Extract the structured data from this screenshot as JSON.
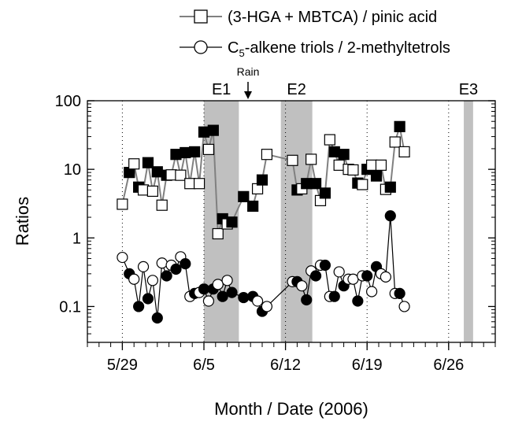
{
  "chart_data": {
    "type": "scatter",
    "xlabel": "Month / Date (2006)",
    "ylabel": "Ratios",
    "y_scale": "log",
    "ylim": [
      0.03,
      100
    ],
    "xlim": [
      "2006-05-26",
      "2006-06-30"
    ],
    "x_tick_labels": [
      "5/29",
      "6/5",
      "6/12",
      "6/19",
      "6/26"
    ],
    "x_tick_dates": [
      "2006-05-29",
      "2006-06-05",
      "2006-06-12",
      "2006-06-19",
      "2006-06-26"
    ],
    "y_tick_labels": [
      "0.1",
      "1",
      "10",
      "100"
    ],
    "y_tick_values": [
      0.1,
      1,
      10,
      100
    ],
    "legend": {
      "position": "top-left",
      "entries": [
        {
          "series": 0,
          "text": "(3-HGA + MBTCA) / pinic acid"
        },
        {
          "series": 1,
          "text_main": "C",
          "text_sub": "5",
          "text_rest": "-alkene triols / 2-methyltetrols"
        }
      ]
    },
    "events": [
      {
        "label": "E1",
        "start": "2006-06-05",
        "end": "2006-06-08"
      },
      {
        "label": "E2",
        "start": "2006-06-11.6",
        "end": "2006-06-14.3"
      },
      {
        "label": "E3",
        "start": "2006-06-27.3",
        "end": "2006-06-28.1"
      }
    ],
    "annotation": {
      "text": "Rain",
      "date": "2006-06-09"
    },
    "series": [
      {
        "name": "(3-HGA + MBTCA) / pinic acid",
        "marker": "square",
        "color": "#808080",
        "points": [
          [
            "2006-05-29.0",
            3.1,
            "open"
          ],
          [
            "2006-05-29.6",
            9.0,
            "filled"
          ],
          [
            "2006-05-30.0",
            12,
            "open"
          ],
          [
            "2006-05-30.4",
            5.5,
            "filled"
          ],
          [
            "2006-05-30.8",
            5.0,
            "open"
          ],
          [
            "2006-05-31.2",
            12.5,
            "filled"
          ],
          [
            "2006-05-31.6",
            4.8,
            "open"
          ],
          [
            "2006-06-01.0",
            9.2,
            "filled"
          ],
          [
            "2006-06-01.4",
            3.0,
            "open"
          ],
          [
            "2006-06-01.8",
            8.2,
            "filled"
          ],
          [
            "2006-06-02.2",
            8.3,
            "open"
          ],
          [
            "2006-06-02.6",
            16.5,
            "filled"
          ],
          [
            "2006-06-03.0",
            8.2,
            "open"
          ],
          [
            "2006-06-03.4",
            17.5,
            "filled"
          ],
          [
            "2006-06-03.8",
            6.2,
            "open"
          ],
          [
            "2006-06-04.2",
            18.0,
            "filled"
          ],
          [
            "2006-06-04.6",
            6.2,
            "open"
          ],
          [
            "2006-06-05.0",
            35,
            "filled"
          ],
          [
            "2006-06-05.4",
            19.5,
            "open"
          ],
          [
            "2006-06-05.8",
            37,
            "filled"
          ],
          [
            "2006-06-06.2",
            1.15,
            "open"
          ],
          [
            "2006-06-06.6",
            1.9,
            "filled"
          ],
          [
            "2006-06-07.0",
            1.6,
            "open"
          ],
          [
            "2006-06-07.4",
            1.7,
            "filled"
          ],
          [
            "2006-06-08.4",
            4.0,
            "filled"
          ],
          [
            "2006-06-09.2",
            2.9,
            "filled"
          ],
          [
            "2006-06-09.6",
            5.2,
            "open"
          ],
          [
            "2006-06-10.0",
            7.0,
            "filled"
          ],
          [
            "2006-06-10.4",
            16.5,
            "open"
          ],
          [
            "2006-06-12.6",
            13.5,
            "open"
          ],
          [
            "2006-06-13.0",
            5.0,
            "filled"
          ],
          [
            "2006-06-13.4",
            5.2,
            "open"
          ],
          [
            "2006-06-13.8",
            6.2,
            "filled"
          ],
          [
            "2006-06-14.2",
            14.0,
            "open"
          ],
          [
            "2006-06-14.6",
            6.2,
            "filled"
          ],
          [
            "2006-06-15.0",
            3.5,
            "open"
          ],
          [
            "2006-06-15.4",
            4.5,
            "filled"
          ],
          [
            "2006-06-15.8",
            27,
            "open"
          ],
          [
            "2006-06-16.2",
            18.0,
            "filled"
          ],
          [
            "2006-06-16.6",
            11.5,
            "open"
          ],
          [
            "2006-06-17.0",
            16.5,
            "filled"
          ],
          [
            "2006-06-17.4",
            10.0,
            "open"
          ],
          [
            "2006-06-17.8",
            9.8,
            "open"
          ],
          [
            "2006-06-18.2",
            6.3,
            "filled"
          ],
          [
            "2006-06-18.6",
            6.0,
            "open"
          ],
          [
            "2006-06-19.0",
            10.0,
            "filled"
          ],
          [
            "2006-06-19.4",
            11.5,
            "open"
          ],
          [
            "2006-06-19.8",
            8.0,
            "filled"
          ],
          [
            "2006-06-20.2",
            11.5,
            "open"
          ],
          [
            "2006-06-20.6",
            5.1,
            "open"
          ],
          [
            "2006-06-21.0",
            5.5,
            "filled"
          ],
          [
            "2006-06-21.4",
            25,
            "open"
          ],
          [
            "2006-06-21.8",
            42,
            "filled"
          ],
          [
            "2006-06-22.2",
            18.0,
            "open"
          ]
        ]
      },
      {
        "name": "C5-alkene triols / 2-methyltetrols",
        "marker": "circle",
        "color": "#000000",
        "points": [
          [
            "2006-05-29.0",
            0.52,
            "open"
          ],
          [
            "2006-05-29.6",
            0.3,
            "filled"
          ],
          [
            "2006-05-30.0",
            0.25,
            "open"
          ],
          [
            "2006-05-30.4",
            0.1,
            "filled"
          ],
          [
            "2006-05-30.8",
            0.38,
            "open"
          ],
          [
            "2006-05-31.2",
            0.13,
            "filled"
          ],
          [
            "2006-05-31.6",
            0.24,
            "open"
          ],
          [
            "2006-06-01.0",
            0.068,
            "filled"
          ],
          [
            "2006-06-01.4",
            0.43,
            "open"
          ],
          [
            "2006-06-01.8",
            0.28,
            "filled"
          ],
          [
            "2006-06-02.2",
            0.4,
            "open"
          ],
          [
            "2006-06-02.6",
            0.35,
            "filled"
          ],
          [
            "2006-06-03.0",
            0.53,
            "open"
          ],
          [
            "2006-06-03.4",
            0.42,
            "filled"
          ],
          [
            "2006-06-03.8",
            0.14,
            "open"
          ],
          [
            "2006-06-04.2",
            0.155,
            "filled"
          ],
          [
            "2006-06-04.6",
            0.16,
            "open"
          ],
          [
            "2006-06-05.0",
            0.18,
            "filled"
          ],
          [
            "2006-06-05.4",
            0.12,
            "open"
          ],
          [
            "2006-06-05.8",
            0.18,
            "filled"
          ],
          [
            "2006-06-06.2",
            0.21,
            "open"
          ],
          [
            "2006-06-06.6",
            0.14,
            "filled"
          ],
          [
            "2006-06-07.0",
            0.24,
            "open"
          ],
          [
            "2006-06-07.4",
            0.16,
            "filled"
          ],
          [
            "2006-06-08.4",
            0.135,
            "filled"
          ],
          [
            "2006-06-09.2",
            0.14,
            "filled"
          ],
          [
            "2006-06-09.6",
            0.12,
            "open"
          ],
          [
            "2006-06-10.0",
            0.085,
            "filled"
          ],
          [
            "2006-06-10.4",
            0.1,
            "open"
          ],
          [
            "2006-06-12.6",
            0.23,
            "open"
          ],
          [
            "2006-06-13.0",
            0.23,
            "filled"
          ],
          [
            "2006-06-13.4",
            0.2,
            "open"
          ],
          [
            "2006-06-13.8",
            0.125,
            "filled"
          ],
          [
            "2006-06-14.2",
            0.33,
            "open"
          ],
          [
            "2006-06-14.6",
            0.28,
            "filled"
          ],
          [
            "2006-06-15.0",
            0.4,
            "open"
          ],
          [
            "2006-06-15.4",
            0.4,
            "filled"
          ],
          [
            "2006-06-15.8",
            0.14,
            "open"
          ],
          [
            "2006-06-16.2",
            0.14,
            "filled"
          ],
          [
            "2006-06-16.6",
            0.32,
            "open"
          ],
          [
            "2006-06-17.0",
            0.2,
            "filled"
          ],
          [
            "2006-06-17.4",
            0.25,
            "open"
          ],
          [
            "2006-06-17.8",
            0.25,
            "open"
          ],
          [
            "2006-06-18.2",
            0.12,
            "filled"
          ],
          [
            "2006-06-18.6",
            0.28,
            "open"
          ],
          [
            "2006-06-19.0",
            0.28,
            "filled"
          ],
          [
            "2006-06-19.4",
            0.165,
            "open"
          ],
          [
            "2006-06-19.8",
            0.38,
            "filled"
          ],
          [
            "2006-06-20.2",
            0.3,
            "open"
          ],
          [
            "2006-06-20.6",
            0.27,
            "open"
          ],
          [
            "2006-06-21.0",
            2.1,
            "filled"
          ],
          [
            "2006-06-21.4",
            0.155,
            "open"
          ],
          [
            "2006-06-21.8",
            0.155,
            "filled"
          ],
          [
            "2006-06-22.2",
            0.1,
            "open"
          ]
        ]
      }
    ]
  },
  "colors": {
    "event_shading": "#c0c0c0",
    "square_line": "#808080",
    "circle_line": "#000000"
  }
}
